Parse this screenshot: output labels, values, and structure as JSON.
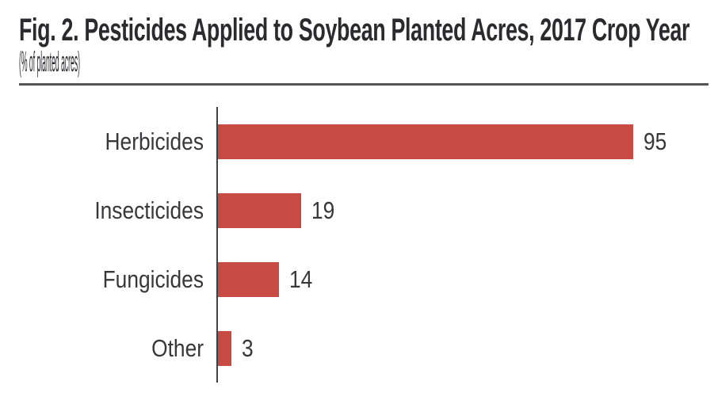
{
  "figure": {
    "title": "Fig. 2. Pesticides Applied to Soybean Planted Acres, 2017 Crop Year",
    "subtitle": "(% of planted acres)"
  },
  "chart_data": {
    "type": "bar",
    "orientation": "horizontal",
    "title": "Fig. 2. Pesticides Applied to Soybean Planted Acres, 2017 Crop Year",
    "subtitle": "(% of planted acres)",
    "unit": "% of planted acres",
    "categories": [
      "Herbicides",
      "Insecticides",
      "Fungicides",
      "Other"
    ],
    "values": [
      95,
      19,
      14,
      3
    ],
    "data_labels_shown": true,
    "grid": false,
    "legend": false,
    "axes": "vertical baseline only, no ticks, no scale labels"
  },
  "colors": {
    "bar": "#c74b42",
    "title_text": "#2b2a2e",
    "label_text": "#38373c",
    "axis_line": "#414042",
    "divider": "#545356",
    "background": "#ffffff"
  }
}
